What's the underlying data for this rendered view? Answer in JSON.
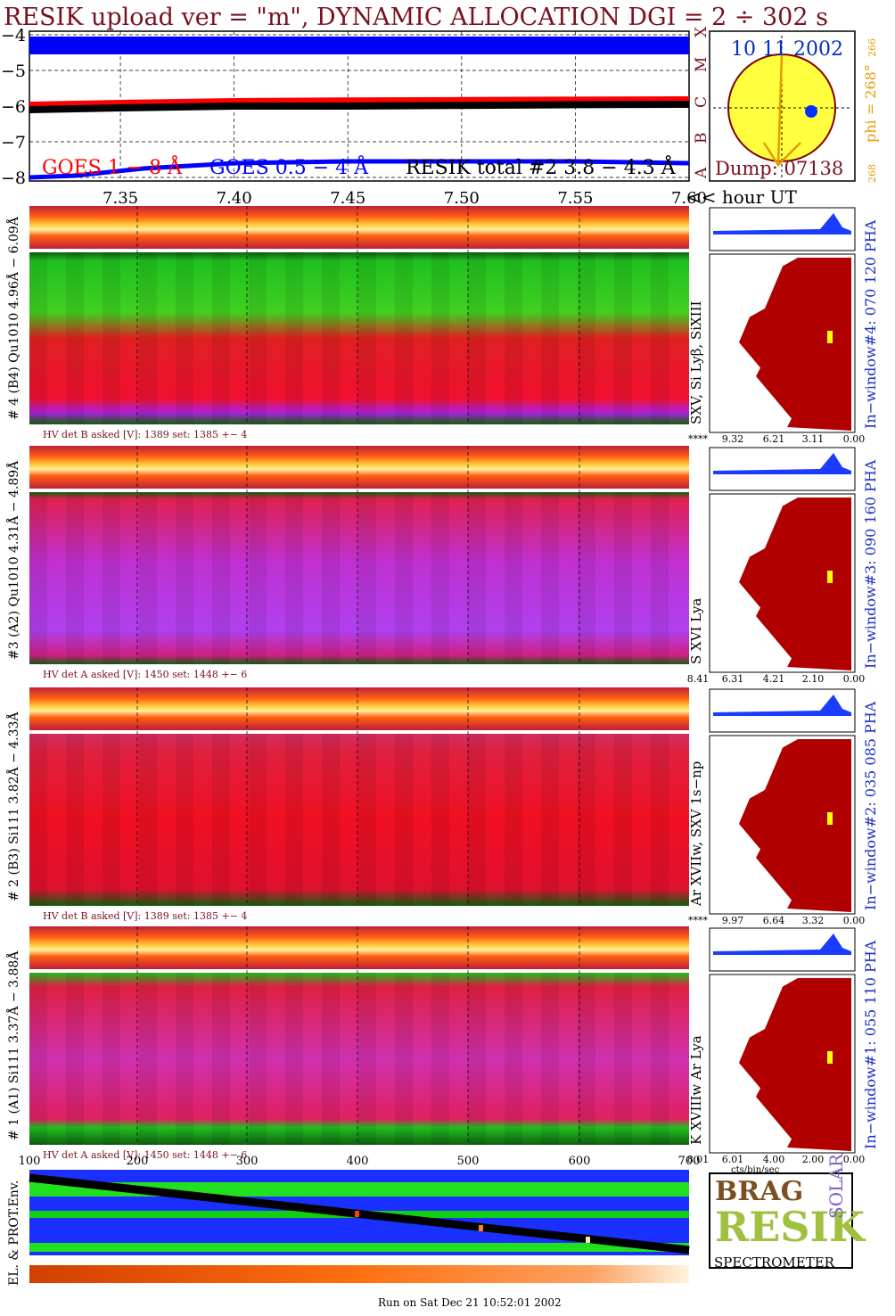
{
  "title": "RESIK upload ver = \"m\", DYNAMIC ALLOCATION  DGI =   2 ÷ 302 s",
  "footer": "Run on Sat Dec 21 10:52:01 2002",
  "colors": {
    "title": "#7a1020",
    "goes_long": "#ff0000",
    "goes_short": "#0000ff",
    "resik_total": "#000000",
    "disk": "#ffff40",
    "disk_outline": "#800000",
    "phi": "#e89a00",
    "histogram_fill": "#b00000",
    "small_histogram": "#1a3cff",
    "env_background": "#1a30ff",
    "env_band": "#20e020",
    "env_track": "#000000"
  },
  "goes_panel": {
    "y_ticks": [
      "−4",
      "−5",
      "−6",
      "−7",
      "−8"
    ],
    "right_letters": [
      "X",
      "M",
      "C",
      "B",
      "A"
    ],
    "legend": {
      "goes_long": "GOES 1 − 8 Å",
      "goes_short": "GOES 0.5 − 4 Å",
      "resik_total": "RESIK total #2  3.8 − 4.3 Å"
    },
    "x_ticks": [
      "7.35",
      "7.40",
      "7.45",
      "7.50",
      "7.55",
      "7.60"
    ],
    "x_unit": "<< hour UT"
  },
  "sun_panel": {
    "date": "10 11 2002",
    "dump": "Dump: 07138",
    "phi_label": "phi = 268°",
    "phi_sub": "266",
    "phi_bottom": "268"
  },
  "channels": [
    {
      "label": "# 4 (B4) Qu1010 4.96Å − 6.09Å",
      "lines": "SXV, Si Lyβ, SiXIII",
      "window": "In−window#4:  070 120 PHA",
      "hv": "HV det B asked [V]:  1389 set:  1385 +−   4",
      "scale": [
        "****",
        "9.32",
        "6.21",
        "3.11",
        "0.00"
      ]
    },
    {
      "label": "#3 (A2) Qu1010  4.31Å − 4.89Å",
      "lines": "S XVI Lya",
      "window": "In−window#3:  090 160 PHA",
      "hv": "HV det A asked [V]:  1450 set:  1448 +−   6",
      "scale": [
        "8.41",
        "6.31",
        "4.21",
        "2.10",
        "0.00"
      ]
    },
    {
      "label": "# 2 (B3) Si111  3.82Å − 4.33Å",
      "lines": "Ar XVIIw,  SXV 1s−np",
      "window": "In−window#2:  035 085 PHA",
      "hv": "HV det B asked [V]:  1389 set:  1385 +−   4",
      "scale": [
        "****",
        "9.97",
        "6.64",
        "3.32",
        "0.00"
      ]
    },
    {
      "label": "# 1 (A1) Si111  3.37Å −  3.88Å",
      "lines": "K XVIIIw  Ar Lya",
      "window": "In−window#1:  055 110 PHA",
      "hv": "HV det A asked [V]:  1450 set:  1448 +−   6",
      "scale": [
        "8.01",
        "6.01",
        "4.00",
        "2.00",
        "0.00"
      ],
      "scale_unit": "cts/bin/sec"
    }
  ],
  "bottom_axis": {
    "ticks": [
      "100",
      "200",
      "300",
      "400",
      "500",
      "600",
      "700"
    ]
  },
  "env": {
    "label": "EL. & PROT.Env."
  },
  "logo": {
    "words": [
      "BRAG",
      "RESIK",
      "SOLAR"
    ],
    "caption": "SPECTROMETER"
  },
  "chart_data": [
    {
      "type": "line",
      "title": "",
      "xlabel": "<< hour UT",
      "x_range": [
        7.31,
        7.6
      ],
      "ylim": [
        -8.1,
        -3.9
      ],
      "x_ticks": [
        7.35,
        7.4,
        7.45,
        7.5,
        7.55,
        7.6
      ],
      "y_ticks": [
        -4,
        -5,
        -6,
        -7,
        -8
      ],
      "grid": true,
      "series": [
        {
          "name": "GOES 1 − 8 Å",
          "x": [
            7.31,
            7.35,
            7.4,
            7.45,
            7.5,
            7.55,
            7.6
          ],
          "values": [
            -6.0,
            -5.95,
            -5.9,
            -5.88,
            -5.87,
            -5.86,
            -5.85
          ]
        },
        {
          "name": "GOES 0.5 − 4 Å",
          "x": [
            7.31,
            7.33,
            7.36,
            7.4,
            7.45,
            7.5,
            7.55,
            7.6
          ],
          "values": [
            -8.0,
            -7.95,
            -7.75,
            -7.6,
            -7.55,
            -7.55,
            -7.55,
            -7.6
          ]
        },
        {
          "name": "RESIK total #2  3.8 − 4.3 Å",
          "x": [
            7.31,
            7.35,
            7.4,
            7.45,
            7.5,
            7.55,
            7.6
          ],
          "values": [
            -6.1,
            -6.05,
            -6.0,
            -6.0,
            -5.98,
            -5.96,
            -5.95
          ]
        },
        {
          "name": "",
          "x": [
            7.31,
            7.6
          ],
          "values": [
            -4.3,
            -4.3
          ]
        }
      ]
    }
  ]
}
